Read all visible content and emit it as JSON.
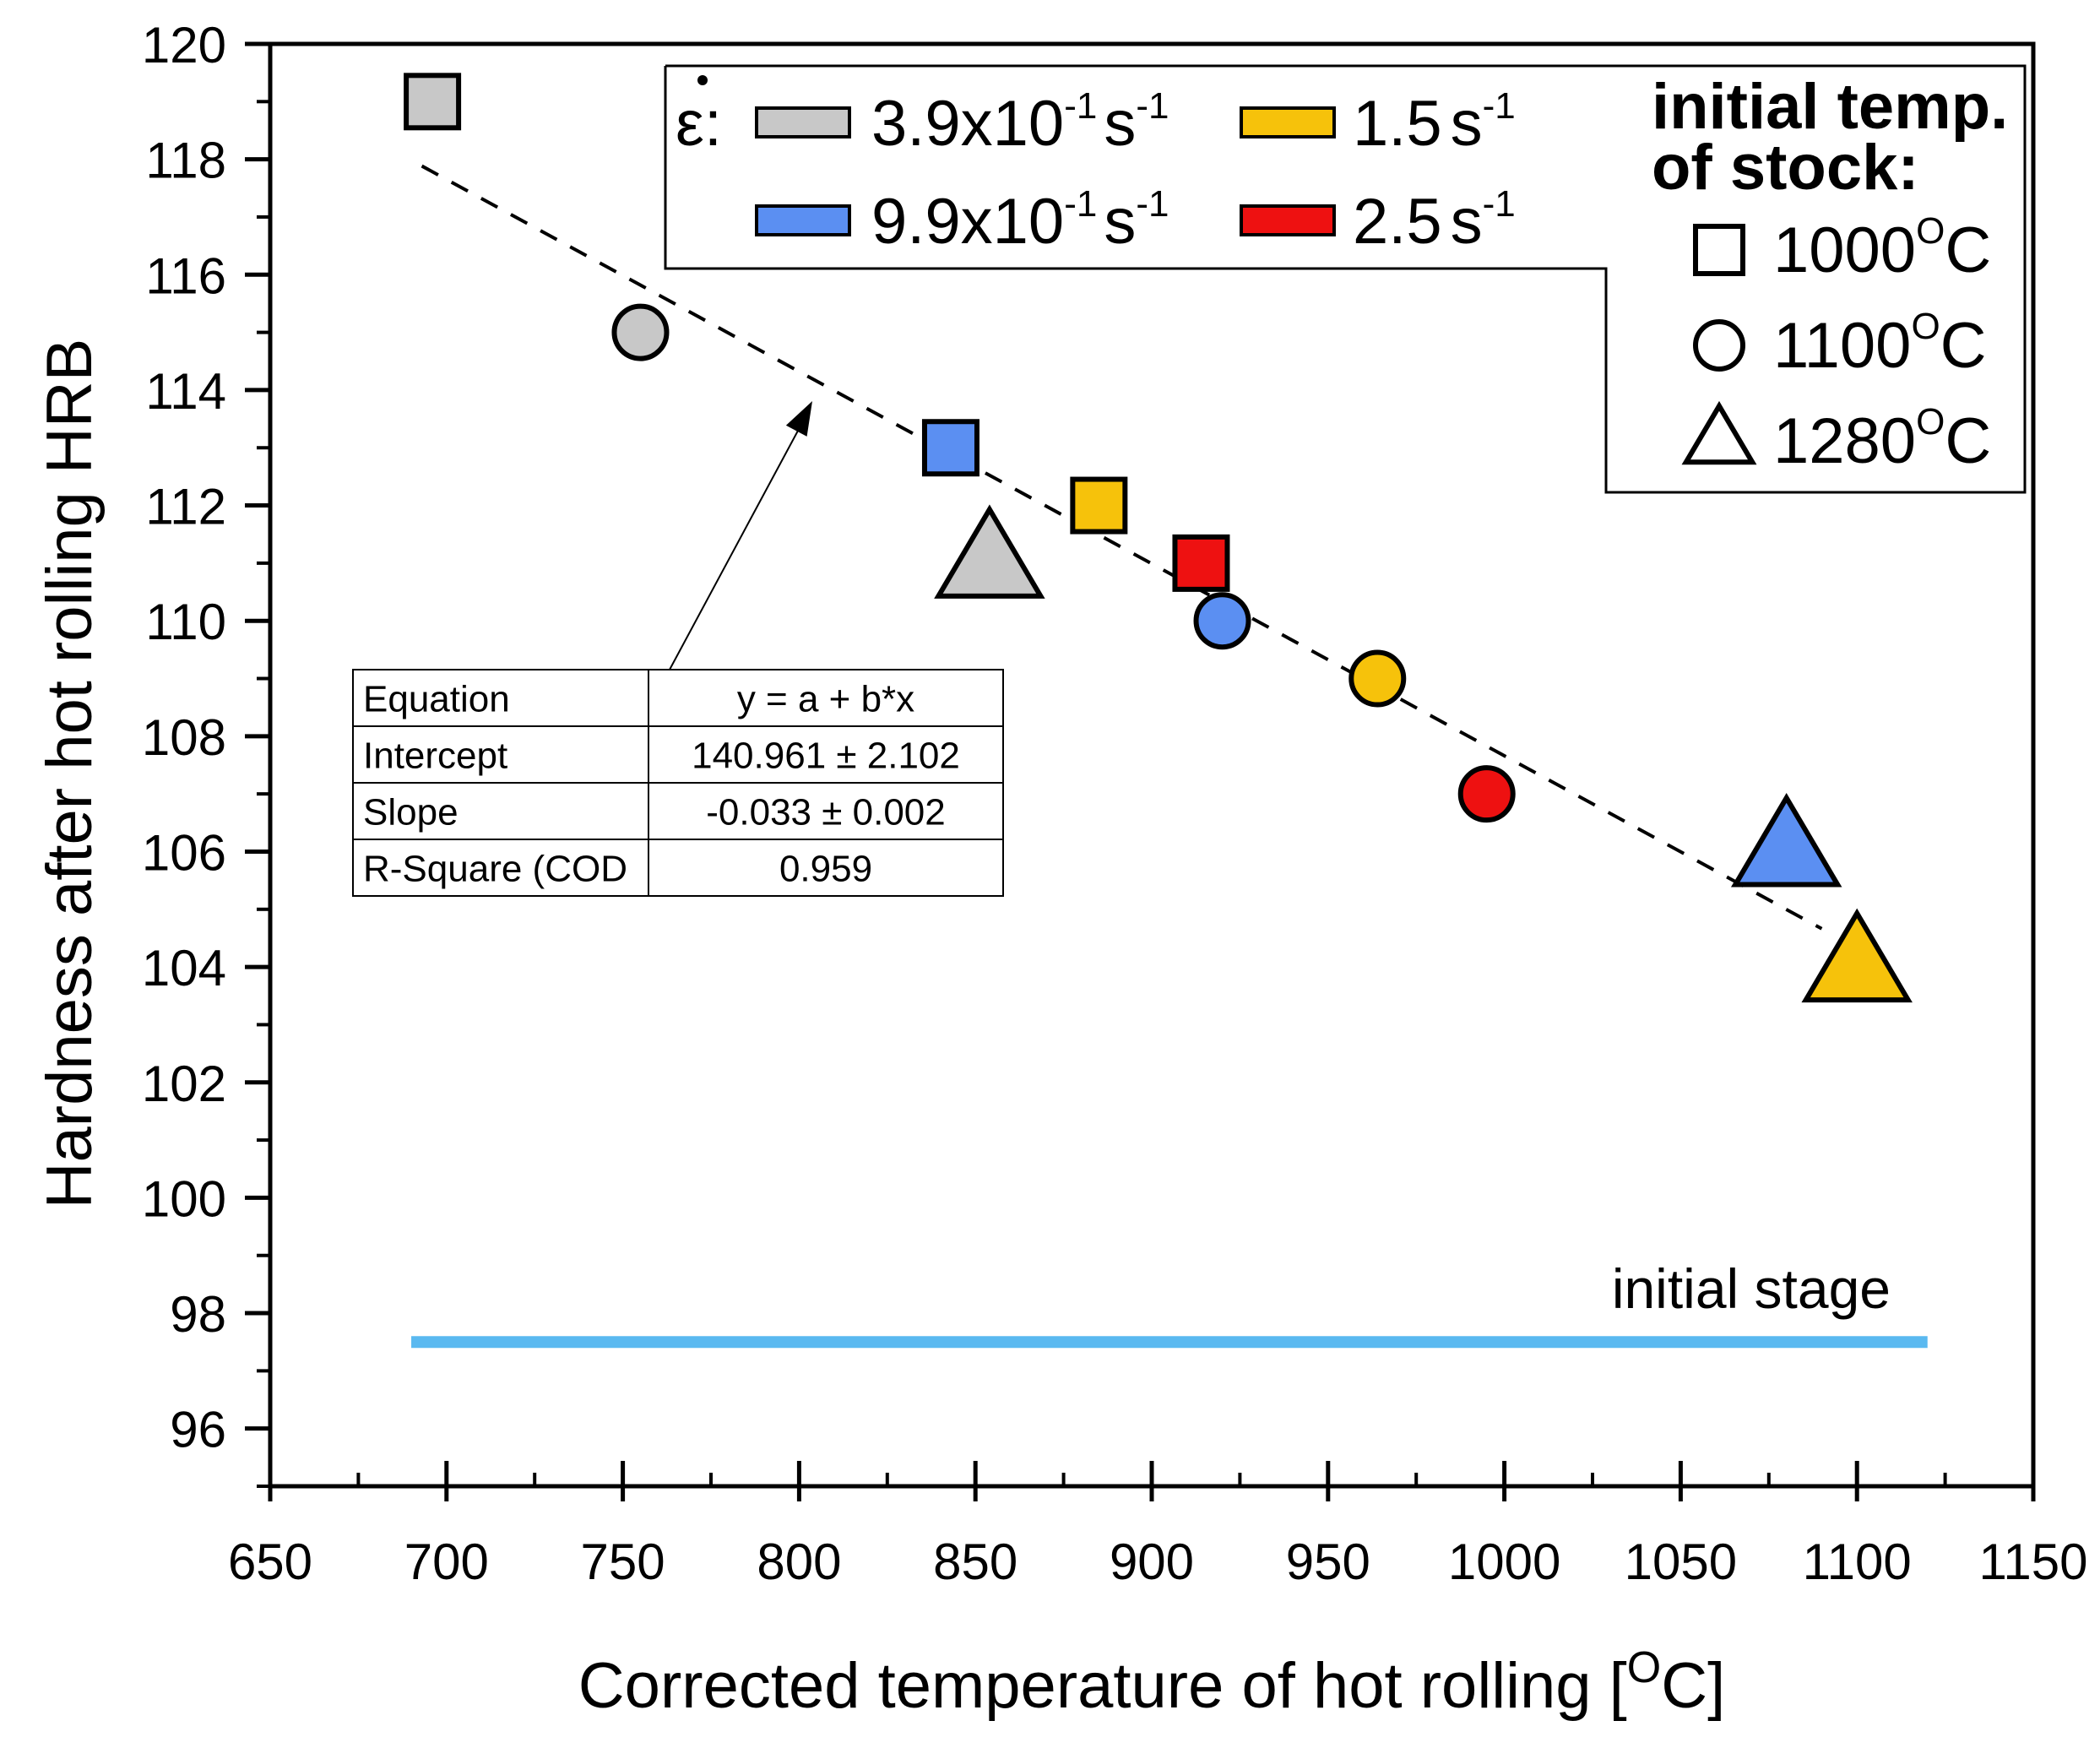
{
  "chart_data": {
    "type": "scatter",
    "xlabel": "Corrected temperature of hot rolling [",
    "xlabel_unit_sup": "O",
    "xlabel_unit_tail": "C]",
    "ylabel": "Hardness after hot rolling HRB",
    "xlim": [
      650,
      1150
    ],
    "ylim": [
      95,
      120
    ],
    "x_ticks": [
      650,
      700,
      750,
      800,
      850,
      900,
      950,
      1000,
      1050,
      1100,
      1150
    ],
    "y_ticks": [
      96,
      98,
      100,
      102,
      104,
      106,
      108,
      110,
      112,
      114,
      116,
      118,
      120
    ],
    "grid": false,
    "strain_rate_symbol": "ε:",
    "series": [
      {
        "name": "3.9x10-1 s-1",
        "mantissa": "3.9x10",
        "exp": "-1",
        "unit": "s",
        "unit_exp": "-1",
        "color": "#c8c8c8",
        "points": [
          {
            "x": 696,
            "y": 119,
            "marker": "square"
          },
          {
            "x": 755,
            "y": 115,
            "marker": "circle"
          },
          {
            "x": 854,
            "y": 111,
            "marker": "triangle"
          }
        ]
      },
      {
        "name": "9.9x10-1 s-1",
        "mantissa": "9.9x10",
        "exp": "-1",
        "unit": "s",
        "unit_exp": "-1",
        "color": "#5b8ff2",
        "points": [
          {
            "x": 843,
            "y": 113,
            "marker": "square"
          },
          {
            "x": 920,
            "y": 110,
            "marker": "circle"
          },
          {
            "x": 1080,
            "y": 106,
            "marker": "triangle"
          }
        ]
      },
      {
        "name": "1.5 s-1",
        "mantissa": "1.5",
        "exp": "",
        "unit": "s",
        "unit_exp": "-1",
        "color": "#f6c20b",
        "points": [
          {
            "x": 885,
            "y": 112,
            "marker": "square"
          },
          {
            "x": 964,
            "y": 109,
            "marker": "circle"
          },
          {
            "x": 1100,
            "y": 104,
            "marker": "triangle"
          }
        ]
      },
      {
        "name": "2.5 s-1",
        "mantissa": "2.5",
        "exp": "",
        "unit": "s",
        "unit_exp": "-1",
        "color": "#ee1111",
        "points": [
          {
            "x": 914,
            "y": 111,
            "marker": "square"
          },
          {
            "x": 995,
            "y": 107,
            "marker": "circle"
          }
        ]
      }
    ],
    "marker_legend": {
      "title_line1": "initial temp.",
      "title_line2": "of stock:",
      "items": [
        {
          "marker": "square",
          "value": "1000",
          "sup": "O",
          "unit": "C"
        },
        {
          "marker": "circle",
          "value": "1100",
          "sup": "O",
          "unit": "C"
        },
        {
          "marker": "triangle",
          "value": "1280",
          "sup": "O",
          "unit": "C"
        }
      ]
    },
    "fit_line": {
      "x_start": 693,
      "x_end": 1090,
      "intercept": 140.961,
      "slope": -0.0333,
      "style": "dashed"
    },
    "fit_table": {
      "rows": [
        {
          "label": "Equation",
          "value": "y = a + b*x"
        },
        {
          "label": "Intercept",
          "value": "140.961 ± 2.102"
        },
        {
          "label": "Slope",
          "value": "-0.033 ± 0.002"
        },
        {
          "label": "R-Square (COD",
          "value": "0.959"
        }
      ]
    },
    "initial_stage": {
      "label": "initial stage",
      "y": 97.5,
      "x_start": 690,
      "x_end": 1120,
      "color": "#5ab9f0"
    }
  }
}
